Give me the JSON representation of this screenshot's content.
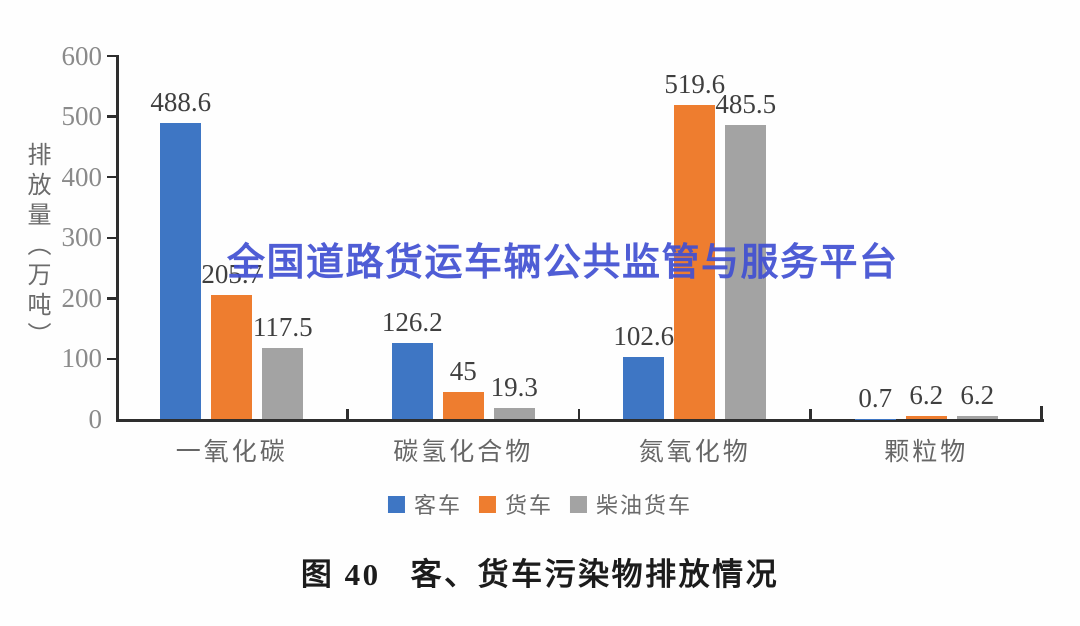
{
  "watermark": {
    "text": "全国道路货运车辆公共监管与服务平台",
    "color": "#4150d2"
  },
  "caption": {
    "prefix": "图 40",
    "text": "客、货车污染物排放情况"
  },
  "y_axis": {
    "title": "排放量（万吨）"
  },
  "chart_data": {
    "type": "bar",
    "title": "客、货车污染物排放情况",
    "categories": [
      "一氧化碳",
      "碳氢化合物",
      "氮氧化物",
      "颗粒物"
    ],
    "series": [
      {
        "name": "客车",
        "color": "#3E76C4",
        "values": [
          488.6,
          126.2,
          102.6,
          0.7
        ]
      },
      {
        "name": "货车",
        "color": "#EE7D2F",
        "values": [
          205.7,
          45,
          519.6,
          6.2
        ]
      },
      {
        "name": "柴油货车",
        "color": "#A3A3A3",
        "values": [
          117.5,
          19.3,
          485.5,
          6.2
        ]
      }
    ],
    "ylabel": "排放量（万吨）",
    "xlabel": "",
    "ylim": [
      0,
      600
    ],
    "yticks": [
      0,
      100,
      200,
      300,
      400,
      500,
      600
    ],
    "grid": false,
    "legend_position": "bottom",
    "data_labels": true
  }
}
